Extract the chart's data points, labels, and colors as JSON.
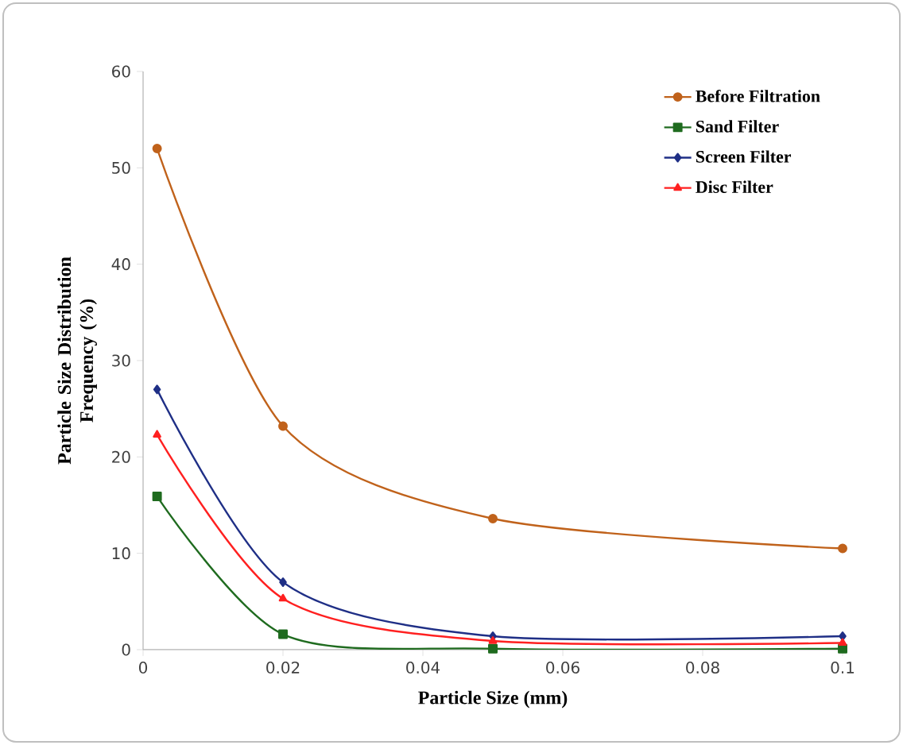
{
  "chart_data": {
    "type": "line",
    "xlabel": "Particle Size (mm)",
    "ylabel": "Particle Size Distribution Frequency (%)",
    "x": [
      0.002,
      0.02,
      0.05,
      0.1
    ],
    "series": [
      {
        "name": "Before Filtration",
        "color": "#c0621b",
        "marker": "circle",
        "values": [
          52,
          23.2,
          13.6,
          10.5
        ]
      },
      {
        "name": "Sand Filter",
        "color": "#1f6b1f",
        "marker": "square",
        "values": [
          15.9,
          1.6,
          0.1,
          0.1
        ]
      },
      {
        "name": "Screen Filter",
        "color": "#1f2f86",
        "marker": "diamond",
        "values": [
          27,
          7,
          1.4,
          1.4
        ]
      },
      {
        "name": "Disc Filter",
        "color": "#ff2020",
        "marker": "triangle",
        "values": [
          22.3,
          5.3,
          0.9,
          0.7
        ]
      }
    ],
    "xlim": [
      0,
      0.1
    ],
    "xticks": [
      0,
      0.02,
      0.04,
      0.06,
      0.08,
      0.1
    ],
    "ylim": [
      0,
      60
    ],
    "yticks": [
      0,
      10,
      20,
      30,
      40,
      50,
      60
    ],
    "legend": "top right",
    "grid": false,
    "line_style": "solid"
  }
}
